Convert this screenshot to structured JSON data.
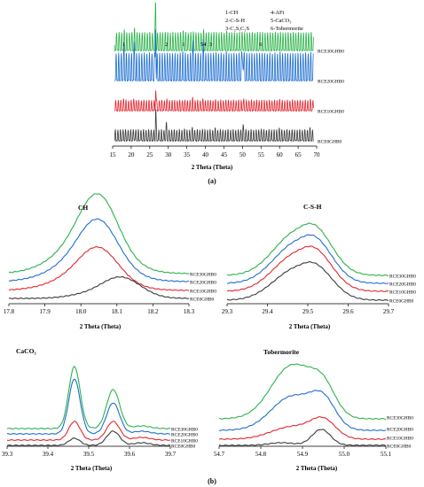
{
  "colors": {
    "RCE30GHB0": "#2bb34a",
    "RCE20GHB0": "#1f6fd1",
    "RCE10GHB0": "#e3262f",
    "RCE0GHB0": "#3a3a3a"
  },
  "captions": {
    "a": "(a)",
    "b": "(b)"
  },
  "legend_lines": [
    {
      "left": "1-CH",
      "right": "4-AFt"
    },
    {
      "left": "2-C-S-H",
      "right": "5-CaCO₃"
    },
    {
      "left": "3-C₂S,C₃S",
      "right": "6-Tobermorite"
    }
  ],
  "chart_data": [
    {
      "id": "a",
      "type": "line",
      "title": "",
      "xlabel": "2 Theta (Theta)",
      "ylabel": "",
      "xlim": [
        15,
        70
      ],
      "xticks": [
        15,
        20,
        25,
        30,
        35,
        40,
        45,
        50,
        55,
        60,
        65,
        70
      ],
      "series": [
        {
          "name": "RCE30GHB0"
        },
        {
          "name": "RCE20GHB0"
        },
        {
          "name": "RCE10GHB0"
        },
        {
          "name": "RCE0GHB0"
        }
      ],
      "peaks": [
        {
          "x": 18.1,
          "height": 0.06
        },
        {
          "x": 20.9,
          "height": 0.1
        },
        {
          "x": 26.6,
          "height": 1.0
        },
        {
          "x": 29.4,
          "height": 0.07
        },
        {
          "x": 34.1,
          "height": 0.06
        },
        {
          "x": 36.6,
          "height": 0.05
        },
        {
          "x": 39.5,
          "height": 0.05
        },
        {
          "x": 42.5,
          "height": 0.04
        },
        {
          "x": 45.8,
          "height": 0.03
        },
        {
          "x": 50.1,
          "height": 0.09
        },
        {
          "x": 54.9,
          "height": 0.04
        },
        {
          "x": 59.9,
          "height": 0.04
        },
        {
          "x": 68.1,
          "height": 0.05
        }
      ],
      "peak_labels": [
        {
          "text": "1",
          "x": 18.0
        },
        {
          "text": "2",
          "x": 29.5
        },
        {
          "text": "1",
          "x": 34.1
        },
        {
          "text": "54",
          "x": 39.4
        },
        {
          "text": "3",
          "x": 41.4
        },
        {
          "text": "6",
          "x": 54.9
        }
      ]
    },
    {
      "id": "ch",
      "type": "line",
      "title": "CH",
      "xlabel": "2 Theta (Theta)",
      "ylabel": "",
      "xlim": [
        17.8,
        18.3
      ],
      "xticks": [
        "17.8",
        "17.9",
        "18.0",
        "18.1",
        "18.2",
        "18.3"
      ],
      "series": [
        {
          "name": "RCE30GHB0"
        },
        {
          "name": "RCE20GHB0"
        },
        {
          "name": "RCE10GHB0"
        },
        {
          "name": "RCE0GHB0"
        }
      ]
    },
    {
      "id": "csh",
      "type": "line",
      "title": "C-S-H",
      "xlabel": "2 Theta (Theta)",
      "ylabel": "",
      "xlim": [
        29.3,
        29.7
      ],
      "xticks": [
        "29.3",
        "29.4",
        "29.5",
        "29.6",
        "29.7"
      ],
      "series": [
        {
          "name": "RCE30GHB0"
        },
        {
          "name": "RCE20GHB0"
        },
        {
          "name": "RCE10GHB0"
        },
        {
          "name": "RCE0GHB0"
        }
      ]
    },
    {
      "id": "caco3",
      "type": "line",
      "title": "CaCO₃",
      "xlabel": "2 Theta (Theta)",
      "ylabel": "",
      "xlim": [
        39.3,
        39.7
      ],
      "xticks": [
        "39.3",
        "39.4",
        "39.5",
        "39.6",
        "39.7"
      ],
      "series": [
        {
          "name": "RCE30GHB0"
        },
        {
          "name": "RCE20GHB0"
        },
        {
          "name": "RCE10GHB0"
        },
        {
          "name": "RCE0GHB0"
        }
      ]
    },
    {
      "id": "tob",
      "type": "line",
      "title": "Tobermorite",
      "xlabel": "2 Theta (Theta)",
      "ylabel": "",
      "xlim": [
        54.7,
        55.1
      ],
      "xticks": [
        "54.7",
        "54.8",
        "54.9",
        "55.0",
        "55.1"
      ],
      "series": [
        {
          "name": "RCE30GHB0"
        },
        {
          "name": "RCE20GHB0"
        },
        {
          "name": "RCE10GHB0"
        },
        {
          "name": "RCE0GHB0"
        }
      ]
    }
  ]
}
